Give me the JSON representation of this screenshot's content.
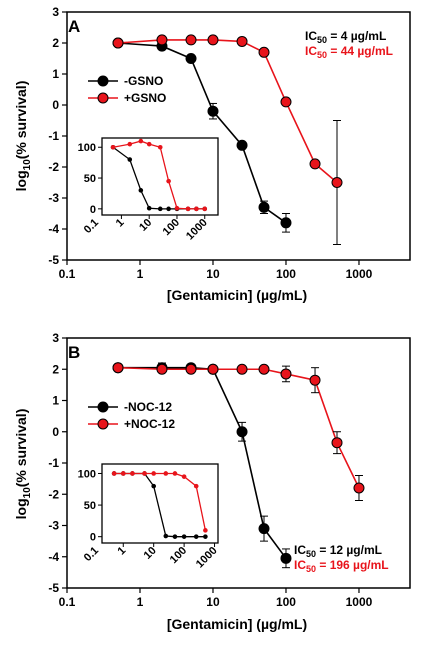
{
  "colors": {
    "black": "#000000",
    "red": "#e8141b"
  },
  "chart_data": [
    {
      "type": "line",
      "panel": "A",
      "xlabel": "[Gentamicin] (µg/mL)",
      "ylabel_main": "log",
      "ylabel_sub": "10",
      "ylabel_rest": "(% survival)",
      "x_scale": "log",
      "xlim": [
        0.1,
        5000
      ],
      "ylim": [
        -5,
        3
      ],
      "x_ticks": [
        "0.1",
        "1",
        "10",
        "100",
        "1000"
      ],
      "y_ticks": [
        "-5",
        "-4",
        "-3",
        "-2",
        "-1",
        "0",
        "1",
        "2",
        "3"
      ],
      "legend_position": "left",
      "series": [
        {
          "name": "-GSNO",
          "color": "#000000",
          "x": [
            0.5,
            2,
            5,
            10,
            25,
            50,
            100
          ],
          "y": [
            2.0,
            1.9,
            1.5,
            -0.2,
            -1.3,
            -3.3,
            -3.8
          ],
          "err": [
            0.05,
            0.05,
            0.05,
            0.25,
            0.05,
            0.2,
            0.3
          ]
        },
        {
          "name": "+GSNO",
          "color": "#e8141b",
          "x": [
            0.5,
            2,
            5,
            10,
            25,
            50,
            100,
            250,
            500
          ],
          "y": [
            2.0,
            2.1,
            2.1,
            2.1,
            2.05,
            1.7,
            0.1,
            -1.9,
            -2.5
          ],
          "err": [
            0.05,
            0.05,
            0.05,
            0.05,
            0.05,
            0.05,
            0.05,
            0.1,
            2.0
          ]
        }
      ],
      "annotations": [
        {
          "prefix": "IC",
          "sub": "50",
          "suffix": " = 4 µg/mL",
          "color": "#000000"
        },
        {
          "prefix": "IC",
          "sub": "50",
          "suffix": " = 44 µg/mL",
          "color": "#e8141b"
        }
      ],
      "inset": {
        "type": "line",
        "x_scale": "log",
        "xlim": [
          0.2,
          3000
        ],
        "ylim": [
          -10,
          115
        ],
        "x_ticks": [
          "0.1",
          "1",
          "10",
          "100",
          "1000"
        ],
        "y_ticks": [
          "0",
          "50",
          "100"
        ],
        "series": [
          {
            "color": "#000000",
            "x": [
              0.5,
              2,
              5,
              10,
              25,
              50,
              100,
              250,
              500,
              1000
            ],
            "y": [
              100,
              80,
              30,
              1,
              0,
              0,
              0,
              0,
              0,
              0
            ]
          },
          {
            "color": "#e8141b",
            "x": [
              0.5,
              2,
              5,
              10,
              25,
              50,
              100,
              250,
              500,
              1000
            ],
            "y": [
              100,
              105,
              110,
              105,
              100,
              45,
              1,
              0,
              0,
              0
            ]
          }
        ]
      }
    },
    {
      "type": "line",
      "panel": "B",
      "xlabel": "[Gentamicin] (µg/mL)",
      "ylabel_main": "log",
      "ylabel_sub": "10",
      "ylabel_rest": "(% survival)",
      "x_scale": "log",
      "xlim": [
        0.1,
        5000
      ],
      "ylim": [
        -5,
        3
      ],
      "x_ticks": [
        "0.1",
        "1",
        "10",
        "100",
        "1000"
      ],
      "y_ticks": [
        "-5",
        "-4",
        "-3",
        "-2",
        "-1",
        "0",
        "1",
        "2",
        "3"
      ],
      "legend_position": "left",
      "series": [
        {
          "name": "-NOC-12",
          "color": "#000000",
          "x": [
            0.5,
            2,
            5,
            10,
            25,
            50,
            100
          ],
          "y": [
            2.05,
            2.05,
            2.05,
            2.0,
            0.0,
            -3.1,
            -4.05
          ],
          "err": [
            0.05,
            0.15,
            0.1,
            0.05,
            0.3,
            0.4,
            0.3
          ]
        },
        {
          "name": "+NOC-12",
          "color": "#e8141b",
          "x": [
            0.5,
            2,
            5,
            10,
            25,
            50,
            100,
            250,
            500,
            1000
          ],
          "y": [
            2.05,
            2.0,
            2.0,
            2.0,
            2.0,
            2.0,
            1.85,
            1.65,
            -0.35,
            -1.8
          ],
          "err": [
            0.05,
            0.1,
            0.1,
            0.05,
            0.05,
            0.05,
            0.25,
            0.4,
            0.35,
            0.4
          ]
        }
      ],
      "annotations": [
        {
          "prefix": "IC",
          "sub": "50",
          "suffix": " = 12 µg/mL",
          "color": "#000000"
        },
        {
          "prefix": "IC",
          "sub": "50",
          "suffix": " = 196 µg/mL",
          "color": "#e8141b"
        }
      ],
      "inset": {
        "type": "line",
        "x_scale": "log",
        "xlim": [
          0.2,
          1300
        ],
        "ylim": [
          -10,
          115
        ],
        "x_ticks": [
          "0.1",
          "1",
          "10",
          "100",
          "1000"
        ],
        "y_ticks": [
          "0",
          "50",
          "100"
        ],
        "series": [
          {
            "color": "#000000",
            "x": [
              0.5,
              1,
              2,
              5,
              10,
              25,
              50,
              100,
              250,
              500
            ],
            "y": [
              100,
              100,
              100,
              100,
              80,
              1,
              0,
              0,
              0,
              0
            ]
          },
          {
            "color": "#e8141b",
            "x": [
              0.5,
              1,
              2,
              5,
              10,
              25,
              50,
              100,
              250,
              500
            ],
            "y": [
              100,
              100,
              100,
              100,
              100,
              100,
              100,
              95,
              80,
              10
            ]
          }
        ]
      }
    }
  ]
}
